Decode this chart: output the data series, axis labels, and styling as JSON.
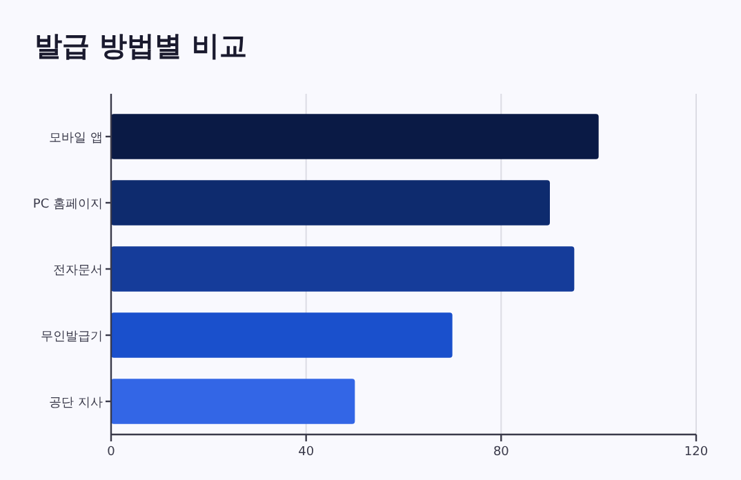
{
  "chart_data": {
    "type": "bar",
    "orientation": "horizontal",
    "title": "발급 방법별 비교",
    "categories": [
      "모바일 앱",
      "PC 홈페이지",
      "전자문서",
      "무인발급기",
      "공단 지사"
    ],
    "values": [
      100,
      90,
      95,
      70,
      50
    ],
    "colors": [
      "#0a1a45",
      "#0e2b6e",
      "#153c9a",
      "#1a50cc",
      "#3366e6"
    ],
    "xlim": [
      0,
      120
    ],
    "xticks": [
      0,
      40,
      80,
      120
    ],
    "grid": "x"
  }
}
